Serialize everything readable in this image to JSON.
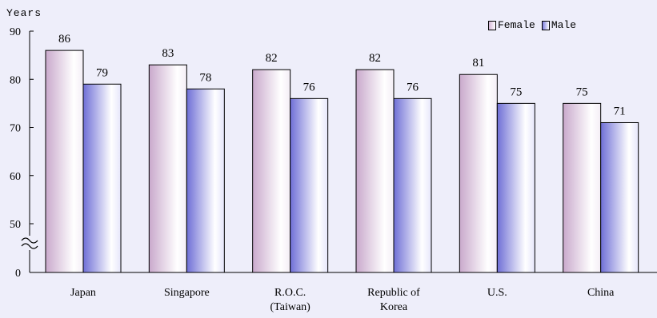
{
  "chart_data": {
    "type": "bar",
    "ylabel": "Years",
    "categories": [
      "Japan",
      "Singapore",
      "R.O.C. (Taiwan)",
      "Republic of Korea",
      "U.S.",
      "China"
    ],
    "category_lines": [
      [
        "Japan"
      ],
      [
        "Singapore"
      ],
      [
        "R.O.C.",
        "(Taiwan)"
      ],
      [
        "Republic of",
        "Korea"
      ],
      [
        "U.S."
      ],
      [
        "China"
      ]
    ],
    "series": [
      {
        "name": "Female",
        "values": [
          86,
          83,
          82,
          82,
          81,
          75
        ],
        "color": "#d6b8d8"
      },
      {
        "name": "Male",
        "values": [
          79,
          78,
          76,
          76,
          75,
          71
        ],
        "color": "#7f7fdf"
      }
    ],
    "yticks": [
      0,
      50,
      60,
      70,
      80,
      90
    ],
    "ylim": [
      40,
      90
    ],
    "axis_break": true,
    "legend_position": "top-right",
    "grid": false
  }
}
